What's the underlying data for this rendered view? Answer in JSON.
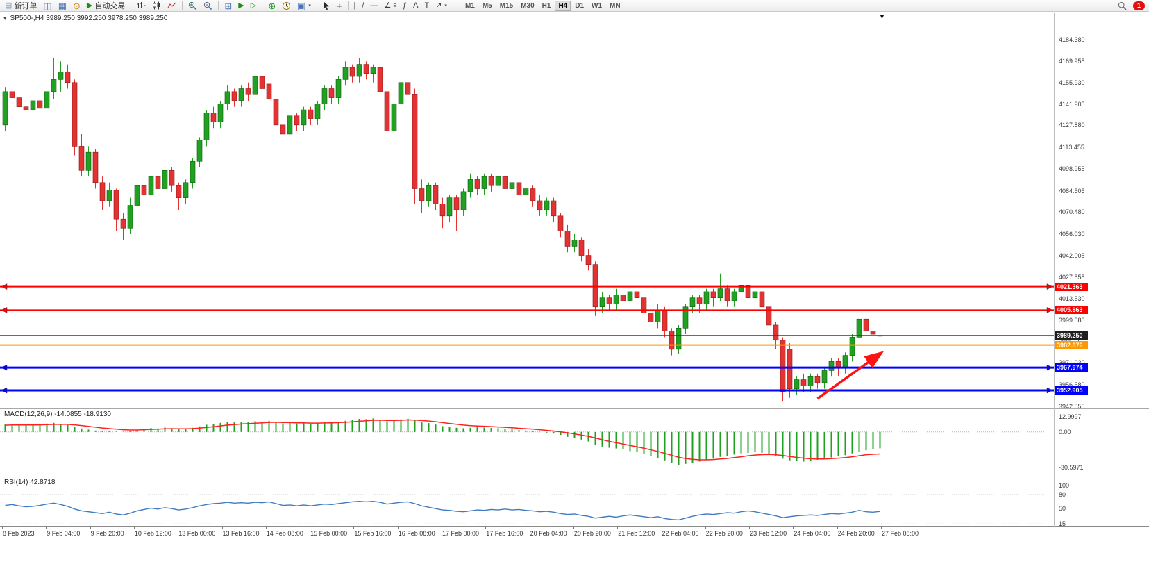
{
  "toolbar": {
    "new_order": "新订单",
    "auto_trading": "自动交易",
    "timeframes": [
      "M1",
      "M5",
      "M15",
      "M30",
      "H1",
      "H4",
      "D1",
      "W1",
      "MN"
    ],
    "active_timeframe": "H4",
    "notification_badge": "1"
  },
  "icons": {
    "new_order": "▤",
    "charts": "◫",
    "market_watch": "▦",
    "calendar": "⊙",
    "auto_trading": "▶",
    "grid": "⊞",
    "auto_scroll": "▶",
    "chart_shift": "▷",
    "indicators_plus": "⊕",
    "templates": "▣",
    "crosshair": "+",
    "vertical_line": "|",
    "trendline": "/",
    "horizontal_line": "—",
    "channel": "∠",
    "channel_sub": "E",
    "fibonacci": "ƒ",
    "text": "A",
    "text_label": "T",
    "arrows": "↗",
    "dropdown_caret": "▾",
    "oneclick_caret": "▾",
    "scroll_marker": "▼"
  },
  "chart_header": {
    "info": "SP500-,H4  3989.250 3992.250 3978.250 3989.250"
  },
  "chart_data": {
    "type": "candlestick",
    "symbol": "SP500-",
    "timeframe": "H4",
    "ohlc_display": {
      "open": "3989.250",
      "high": "3992.250",
      "low": "3978.250",
      "close": "3989.250"
    },
    "colors": {
      "bull": "#21A121",
      "bull_dark": "#0E5E0E",
      "bear": "#E23232",
      "bear_dark": "#8E1A1A",
      "macd_histogram": "#21A121",
      "macd_signal": "#FF2121",
      "rsi": "#3E7BC4"
    },
    "price_axis": {
      "min": 3941,
      "max": 4193,
      "labels": [
        "4184.380",
        "4169.955",
        "4155.930",
        "4141.905",
        "4127.880",
        "4113.455",
        "4098.955",
        "4084.505",
        "4070.480",
        "4056.030",
        "4042.005",
        "4027.555",
        "4013.530",
        "3999.080",
        "3985.055",
        "3971.030",
        "3956.580",
        "3942.555"
      ]
    },
    "time_axis": {
      "labels": [
        "8 Feb 2023",
        "9 Feb 04:00",
        "9 Feb 20:00",
        "10 Feb 12:00",
        "13 Feb 00:00",
        "13 Feb 16:00",
        "14 Feb 08:00",
        "15 Feb 00:00",
        "15 Feb 16:00",
        "16 Feb 08:00",
        "17 Feb 00:00",
        "17 Feb 16:00",
        "20 Feb 04:00",
        "20 Feb 20:00",
        "21 Feb 12:00",
        "22 Feb 04:00",
        "22 Feb 20:00",
        "23 Feb 12:00",
        "24 Feb 04:00",
        "24 Feb 20:00",
        "27 Feb 08:00"
      ]
    },
    "price_lines": [
      {
        "name": "resistance-line-1",
        "label": "4021.363",
        "price": 4021.363,
        "color": "#FF0000",
        "width": 2,
        "markers": true
      },
      {
        "name": "resistance-line-2",
        "label": "4005.863",
        "price": 4005.863,
        "color": "#FF0000",
        "width": 2,
        "markers": true
      },
      {
        "name": "bid-price-line",
        "label": "3989.250",
        "price": 3989.25,
        "color": "#3A3A3A",
        "width": 1,
        "badge": "#1F1F1F"
      },
      {
        "name": "support-line-orange",
        "label": "3982.876",
        "price": 3982.876,
        "color": "#FF9800",
        "width": 2
      },
      {
        "name": "support-line-blue-1",
        "label": "3967.974",
        "price": 3967.974,
        "color": "#0000FF",
        "width": 3,
        "markers": true
      },
      {
        "name": "support-line-blue-2",
        "label": "3952.905",
        "price": 3952.905,
        "color": "#0000FF",
        "width": 3,
        "markers": true
      }
    ],
    "arrow_annotation": {
      "color": "#FF1212",
      "from": {
        "bar": 117,
        "price": 3947.5
      },
      "to": {
        "bar": 126,
        "price": 3977
      }
    },
    "candles": [
      [
        4128,
        4153,
        4124,
        4150
      ],
      [
        4150,
        4156,
        4142,
        4146
      ],
      [
        4146,
        4152,
        4136,
        4140
      ],
      [
        4140,
        4146,
        4132,
        4138
      ],
      [
        4138,
        4147,
        4134,
        4144
      ],
      [
        4144,
        4150,
        4136,
        4139
      ],
      [
        4139,
        4152,
        4136,
        4150
      ],
      [
        4150,
        4172,
        4145,
        4158
      ],
      [
        4158,
        4170,
        4150,
        4163
      ],
      [
        4163,
        4168,
        4152,
        4156
      ],
      [
        4156,
        4158,
        4108,
        4114
      ],
      [
        4114,
        4122,
        4094,
        4098
      ],
      [
        4098,
        4114,
        4094,
        4110
      ],
      [
        4110,
        4112,
        4086,
        4090
      ],
      [
        4090,
        4094,
        4072,
        4078
      ],
      [
        4078,
        4090,
        4074,
        4085
      ],
      [
        4085,
        4086,
        4058,
        4066
      ],
      [
        4066,
        4070,
        4052,
        4060
      ],
      [
        4060,
        4080,
        4056,
        4075
      ],
      [
        4075,
        4092,
        4072,
        4088
      ],
      [
        4088,
        4092,
        4078,
        4082
      ],
      [
        4082,
        4098,
        4080,
        4094
      ],
      [
        4094,
        4096,
        4082,
        4086
      ],
      [
        4086,
        4102,
        4084,
        4098
      ],
      [
        4098,
        4100,
        4084,
        4088
      ],
      [
        4088,
        4090,
        4072,
        4080
      ],
      [
        4080,
        4092,
        4076,
        4090
      ],
      [
        4090,
        4106,
        4086,
        4104
      ],
      [
        4104,
        4120,
        4100,
        4118
      ],
      [
        4118,
        4138,
        4114,
        4136
      ],
      [
        4136,
        4140,
        4126,
        4130
      ],
      [
        4130,
        4144,
        4126,
        4142
      ],
      [
        4142,
        4154,
        4138,
        4150
      ],
      [
        4150,
        4152,
        4140,
        4144
      ],
      [
        4144,
        4154,
        4140,
        4152
      ],
      [
        4152,
        4156,
        4144,
        4148
      ],
      [
        4148,
        4162,
        4144,
        4160
      ],
      [
        4160,
        4164,
        4148,
        4152
      ],
      [
        4155,
        4190,
        4122,
        4145
      ],
      [
        4145,
        4148,
        4124,
        4128
      ],
      [
        4128,
        4132,
        4114,
        4122
      ],
      [
        4122,
        4136,
        4118,
        4134
      ],
      [
        4134,
        4136,
        4124,
        4128
      ],
      [
        4128,
        4140,
        4124,
        4138
      ],
      [
        4138,
        4140,
        4128,
        4132
      ],
      [
        4132,
        4144,
        4128,
        4142
      ],
      [
        4142,
        4154,
        4138,
        4152
      ],
      [
        4152,
        4154,
        4142,
        4146
      ],
      [
        4146,
        4160,
        4142,
        4158
      ],
      [
        4158,
        4170,
        4154,
        4166
      ],
      [
        4166,
        4168,
        4156,
        4160
      ],
      [
        4160,
        4172,
        4156,
        4168
      ],
      [
        4168,
        4170,
        4158,
        4162
      ],
      [
        4162,
        4168,
        4156,
        4166
      ],
      [
        4166,
        4168,
        4146,
        4150
      ],
      [
        4150,
        4152,
        4118,
        4124
      ],
      [
        4124,
        4144,
        4120,
        4142
      ],
      [
        4142,
        4160,
        4138,
        4156
      ],
      [
        4156,
        4158,
        4144,
        4148
      ],
      [
        4148,
        4152,
        4076,
        4086
      ],
      [
        4086,
        4092,
        4070,
        4078
      ],
      [
        4078,
        4090,
        4074,
        4088
      ],
      [
        4088,
        4090,
        4072,
        4076
      ],
      [
        4076,
        4080,
        4060,
        4068
      ],
      [
        4068,
        4082,
        4064,
        4080
      ],
      [
        4080,
        4082,
        4058,
        4072
      ],
      [
        4072,
        4086,
        4068,
        4084
      ],
      [
        4084,
        4096,
        4080,
        4092
      ],
      [
        4092,
        4094,
        4082,
        4086
      ],
      [
        4086,
        4096,
        4082,
        4094
      ],
      [
        4094,
        4096,
        4084,
        4088
      ],
      [
        4088,
        4098,
        4084,
        4094
      ],
      [
        4094,
        4096,
        4082,
        4086
      ],
      [
        4086,
        4092,
        4080,
        4090
      ],
      [
        4090,
        4092,
        4078,
        4082
      ],
      [
        4082,
        4088,
        4076,
        4086
      ],
      [
        4086,
        4088,
        4074,
        4078
      ],
      [
        4078,
        4082,
        4068,
        4072
      ],
      [
        4072,
        4080,
        4068,
        4078
      ],
      [
        4078,
        4080,
        4064,
        4068
      ],
      [
        4068,
        4070,
        4054,
        4058
      ],
      [
        4058,
        4062,
        4044,
        4048
      ],
      [
        4048,
        4056,
        4044,
        4052
      ],
      [
        4052,
        4054,
        4038,
        4042
      ],
      [
        4042,
        4046,
        4032,
        4036
      ],
      [
        4036,
        4038,
        4002,
        4008
      ],
      [
        4008,
        4018,
        4004,
        4014
      ],
      [
        4014,
        4016,
        4006,
        4010
      ],
      [
        4010,
        4020,
        4006,
        4016
      ],
      [
        4016,
        4018,
        4008,
        4012
      ],
      [
        4012,
        4022,
        4008,
        4018
      ],
      [
        4018,
        4020,
        4010,
        4014
      ],
      [
        4014,
        4016,
        3996,
        4004
      ],
      [
        4004,
        4006,
        3988,
        3998
      ],
      [
        3998,
        4010,
        3994,
        4006
      ],
      [
        4006,
        4008,
        3988,
        3992
      ],
      [
        3992,
        3994,
        3976,
        3980
      ],
      [
        3980,
        3996,
        3977,
        3994
      ],
      [
        3994,
        4010,
        3990,
        4008
      ],
      [
        4008,
        4016,
        4004,
        4014
      ],
      [
        4014,
        4016,
        4004,
        4010
      ],
      [
        4010,
        4020,
        4006,
        4018
      ],
      [
        4018,
        4020,
        4008,
        4014
      ],
      [
        4014,
        4030,
        4012,
        4020
      ],
      [
        4020,
        4022,
        4008,
        4012
      ],
      [
        4012,
        4020,
        4008,
        4018
      ],
      [
        4018,
        4026,
        4014,
        4022
      ],
      [
        4022,
        4024,
        4010,
        4014
      ],
      [
        4014,
        4020,
        4010,
        4018
      ],
      [
        4018,
        4020,
        4004,
        4008
      ],
      [
        4008,
        4010,
        3992,
        3996
      ],
      [
        3996,
        3998,
        3980,
        3986
      ],
      [
        3986,
        3988,
        3946,
        3952
      ],
      [
        3980,
        3984,
        3948,
        3954
      ],
      [
        3954,
        3962,
        3950,
        3960
      ],
      [
        3960,
        3964,
        3952,
        3956
      ],
      [
        3956,
        3964,
        3952,
        3962
      ],
      [
        3962,
        3964,
        3954,
        3958
      ],
      [
        3958,
        3968,
        3954,
        3966
      ],
      [
        3966,
        3974,
        3962,
        3972
      ],
      [
        3972,
        3974,
        3962,
        3968
      ],
      [
        3968,
        3978,
        3964,
        3976
      ],
      [
        3976,
        3990,
        3972,
        3988
      ],
      [
        3988,
        4026,
        3984,
        4000
      ],
      [
        4000,
        4002,
        3988,
        3992
      ],
      [
        3992,
        3998,
        3986,
        3990
      ],
      [
        3989.25,
        3992.25,
        3978.25,
        3989.25
      ]
    ],
    "indicators": [
      {
        "id": "macd",
        "label": "MACD(12,26,9)",
        "value_main": "-14.0855",
        "value_signal": "-18.9130",
        "scale": [
          {
            "label": "12.9997",
            "value": 12.9997
          },
          {
            "label": "0.00",
            "value": 0
          },
          {
            "label": "-30.5971",
            "value": -30.5971
          }
        ],
        "histogram": [
          6.5,
          7.0,
          6.2,
          5.8,
          6.0,
          6.5,
          7.2,
          7.8,
          7.0,
          6.0,
          4.5,
          3.0,
          2.0,
          1.2,
          0.6,
          1.0,
          0.4,
          0.2,
          0.8,
          1.8,
          2.6,
          3.4,
          3.0,
          3.8,
          3.2,
          2.4,
          2.8,
          3.6,
          4.8,
          6.2,
          7.0,
          7.8,
          8.6,
          8.2,
          8.8,
          8.4,
          9.2,
          8.8,
          9.6,
          8.6,
          7.4,
          7.8,
          7.2,
          7.6,
          7.0,
          7.4,
          8.2,
          8.0,
          8.8,
          9.6,
          10.4,
          11.2,
          11.0,
          11.6,
          10.6,
          9.2,
          9.6,
          10.8,
          11.4,
          9.8,
          8.2,
          7.6,
          6.4,
          5.0,
          4.6,
          3.6,
          3.2,
          3.6,
          4.0,
          3.8,
          3.4,
          3.2,
          2.6,
          2.2,
          1.6,
          1.2,
          0.6,
          -0.2,
          -0.6,
          -1.4,
          -2.6,
          -4.2,
          -5.2,
          -6.6,
          -8.2,
          -11.0,
          -12.6,
          -13.6,
          -14.2,
          -14.6,
          -16.5,
          -17.5,
          -19.0,
          -21.0,
          -22.5,
          -24.5,
          -27.0,
          -28.5,
          -27.5,
          -26.5,
          -25.5,
          -24.0,
          -23.0,
          -21.5,
          -20.5,
          -19.5,
          -18.5,
          -18.0,
          -17.5,
          -18.0,
          -19.0,
          -20.5,
          -23.0,
          -24.5,
          -25.0,
          -25.5,
          -25.0,
          -24.0,
          -23.0,
          -22.0,
          -21.0,
          -20.0,
          -18.5,
          -17.0,
          -15.8,
          -15.0,
          -14.0855
        ],
        "signal": [
          5.8,
          6.0,
          6.1,
          6.0,
          6.0,
          6.1,
          6.3,
          6.5,
          6.6,
          6.5,
          6.1,
          5.5,
          4.8,
          4.1,
          3.4,
          2.9,
          2.4,
          1.9,
          1.7,
          1.7,
          1.9,
          2.2,
          2.4,
          2.7,
          2.8,
          2.7,
          2.7,
          2.9,
          3.3,
          3.9,
          4.5,
          5.2,
          5.9,
          6.3,
          6.8,
          7.1,
          7.5,
          7.8,
          8.2,
          8.3,
          8.1,
          8.0,
          7.8,
          7.8,
          7.6,
          7.6,
          7.7,
          7.8,
          8.0,
          8.3,
          8.7,
          9.2,
          9.6,
          10.0,
          10.1,
          9.9,
          9.8,
          10.0,
          10.3,
          10.2,
          9.8,
          9.4,
          8.8,
          8.0,
          7.3,
          6.6,
          5.9,
          5.4,
          5.1,
          4.9,
          4.6,
          4.3,
          4.0,
          3.6,
          3.2,
          2.8,
          2.4,
          1.9,
          1.4,
          0.8,
          0.1,
          -0.8,
          -1.7,
          -2.7,
          -3.8,
          -5.2,
          -6.7,
          -8.1,
          -9.3,
          -10.4,
          -11.6,
          -12.8,
          -14.0,
          -15.4,
          -16.8,
          -18.4,
          -20.1,
          -21.8,
          -22.9,
          -23.6,
          -24.0,
          -24.0,
          -23.8,
          -23.3,
          -22.8,
          -22.1,
          -21.4,
          -20.5,
          -19.9,
          -19.5,
          -19.4,
          -19.6,
          -20.3,
          -21.1,
          -21.9,
          -22.6,
          -23.1,
          -23.3,
          -23.3,
          -23.0,
          -22.6,
          -22.1,
          -21.4,
          -20.5,
          -19.6,
          -19.2,
          -18.913
        ]
      },
      {
        "id": "rsi",
        "label": "RSI(14)",
        "value": "42.8718",
        "scale": [
          {
            "label": "100",
            "value": 100
          },
          {
            "label": "80",
            "value": 80
          },
          {
            "label": "50",
            "value": 50
          },
          {
            "label": "15",
            "value": 15
          }
        ],
        "levels": [
          80,
          50,
          15
        ],
        "values": [
          56,
          58,
          55,
          53,
          54,
          56,
          59,
          61,
          58,
          54,
          48,
          44,
          42,
          40,
          38,
          41,
          37,
          35,
          39,
          44,
          47,
          50,
          48,
          51,
          49,
          46,
          48,
          51,
          55,
          58,
          60,
          61,
          63,
          61,
          62,
          61,
          63,
          62,
          64,
          60,
          56,
          57,
          55,
          57,
          55,
          57,
          59,
          58,
          60,
          62,
          64,
          65,
          64,
          65,
          63,
          59,
          61,
          63,
          64,
          60,
          55,
          52,
          49,
          46,
          45,
          43,
          42,
          44,
          46,
          45,
          47,
          46,
          48,
          46,
          47,
          45,
          44,
          42,
          43,
          41,
          38,
          36,
          37,
          34,
          32,
          28,
          30,
          32,
          30,
          33,
          35,
          33,
          31,
          29,
          31,
          27,
          25,
          24,
          28,
          32,
          35,
          37,
          36,
          38,
          40,
          39,
          42,
          44,
          42,
          39,
          36,
          33,
          29,
          31,
          33,
          34,
          35,
          34,
          36,
          38,
          37,
          39,
          41,
          45,
          42,
          41,
          42.8718
        ]
      }
    ]
  }
}
